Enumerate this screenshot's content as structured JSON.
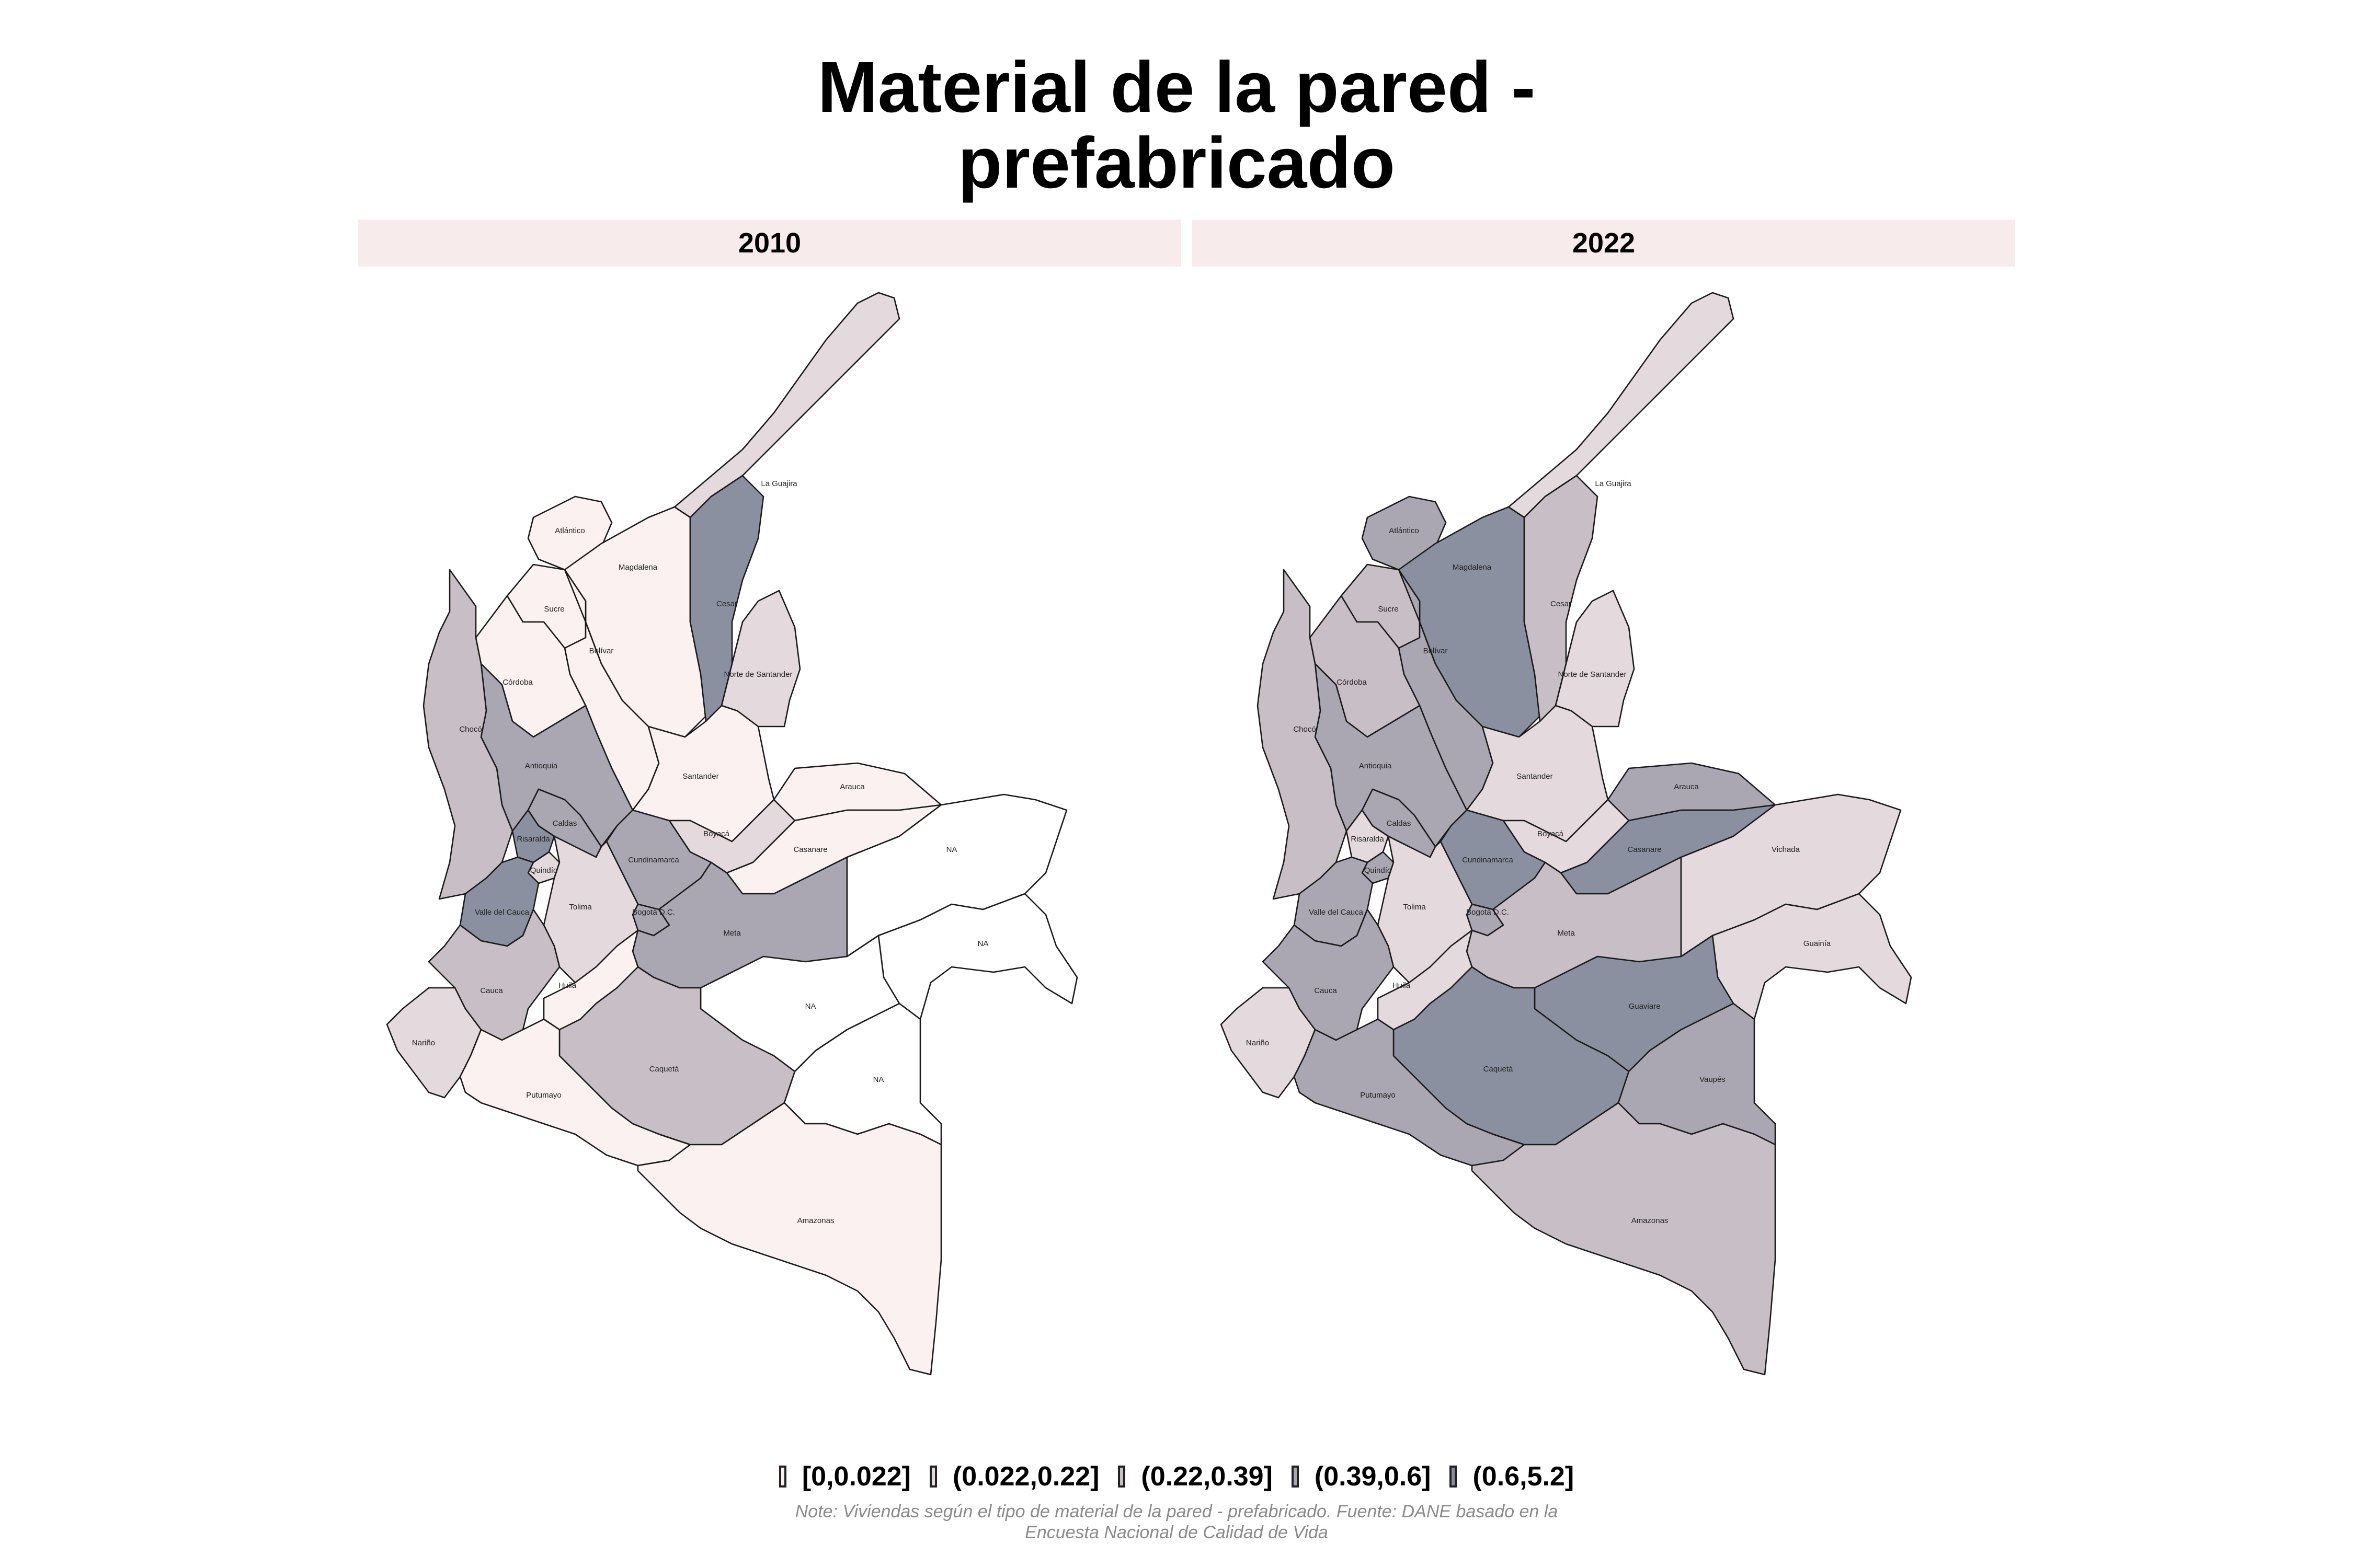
{
  "title_line1": "Material de la pared -",
  "title_line2": "prefabricado",
  "panels": [
    {
      "year": "2010"
    },
    {
      "year": "2022"
    }
  ],
  "colors": {
    "bin0": "#fcf1f1",
    "bin1": "#e4dadd",
    "bin2": "#c8bfc6",
    "bin3": "#aaa7b2",
    "bin4": "#8a909f",
    "na": "#ffffff"
  },
  "legend": [
    {
      "label": "[0,0.022]",
      "color": "#fcf1f1"
    },
    {
      "label": "(0.022,0.22]",
      "color": "#e4dadd"
    },
    {
      "label": "(0.22,0.39]",
      "color": "#c8bfc6"
    },
    {
      "label": "(0.39,0.6]",
      "color": "#aaa7b2"
    },
    {
      "label": "(0.6,5.2]",
      "color": "#8a909f"
    }
  ],
  "note_line1": "Note: Viviendas según el tipo de material de la pared - prefabricado. Fuente: DANE basado en la",
  "note_line2": "Encuesta Nacional de Calidad de Vida",
  "departments": [
    {
      "name": "La Guajira",
      "bin2010": 1,
      "bin2022": 1
    },
    {
      "name": "Atlántico",
      "bin2010": 0,
      "bin2022": 3
    },
    {
      "name": "Magdalena",
      "bin2010": 0,
      "bin2022": 4
    },
    {
      "name": "Cesar",
      "bin2010": 4,
      "bin2022": 2
    },
    {
      "name": "Sucre",
      "bin2010": 0,
      "bin2022": 2
    },
    {
      "name": "Bolívar",
      "bin2010": 0,
      "bin2022": 3
    },
    {
      "name": "Córdoba",
      "bin2010": 0,
      "bin2022": 2
    },
    {
      "name": "Norte de Santander",
      "bin2010": 1,
      "bin2022": 1
    },
    {
      "name": "Antioquia",
      "bin2010": 3,
      "bin2022": 3
    },
    {
      "name": "Santander",
      "bin2010": 0,
      "bin2022": 1
    },
    {
      "name": "Arauca",
      "bin2010": 0,
      "bin2022": 3
    },
    {
      "name": "Chocó",
      "bin2010": 2,
      "bin2022": 2
    },
    {
      "name": "Boyacá",
      "bin2010": 1,
      "bin2022": 1
    },
    {
      "name": "Casanare",
      "bin2010": 0,
      "bin2022": 4
    },
    {
      "name": "Caldas",
      "bin2010": 3,
      "bin2022": 3
    },
    {
      "name": "Risaralda",
      "bin2010": 4,
      "bin2022": 1
    },
    {
      "name": "Cundinamarca",
      "bin2010": 3,
      "bin2022": 4
    },
    {
      "name": "Quindío",
      "bin2010": 1,
      "bin2022": 3
    },
    {
      "name": "Bogotá D.C.",
      "bin2010": 3,
      "bin2022": 3
    },
    {
      "name": "Valle del Cauca",
      "bin2010": 4,
      "bin2022": 3
    },
    {
      "name": "Tolima",
      "bin2010": 1,
      "bin2022": 1
    },
    {
      "name": "Meta",
      "bin2010": 3,
      "bin2022": 2
    },
    {
      "name": "Vichada",
      "bin2010": null,
      "bin2022": 1
    },
    {
      "name": "Cauca",
      "bin2010": 2,
      "bin2022": 3
    },
    {
      "name": "Huila",
      "bin2010": 0,
      "bin2022": 1
    },
    {
      "name": "Guainía",
      "bin2010": null,
      "bin2022": 1
    },
    {
      "name": "Guaviare",
      "bin2010": null,
      "bin2022": 4
    },
    {
      "name": "Nariño",
      "bin2010": 1,
      "bin2022": 1
    },
    {
      "name": "Caquetá",
      "bin2010": 2,
      "bin2022": 4
    },
    {
      "name": "Vaupés",
      "bin2010": null,
      "bin2022": 3
    },
    {
      "name": "Putumayo",
      "bin2010": 0,
      "bin2022": 3
    },
    {
      "name": "Amazonas",
      "bin2010": 0,
      "bin2022": 2
    }
  ],
  "na_label": "NA"
}
